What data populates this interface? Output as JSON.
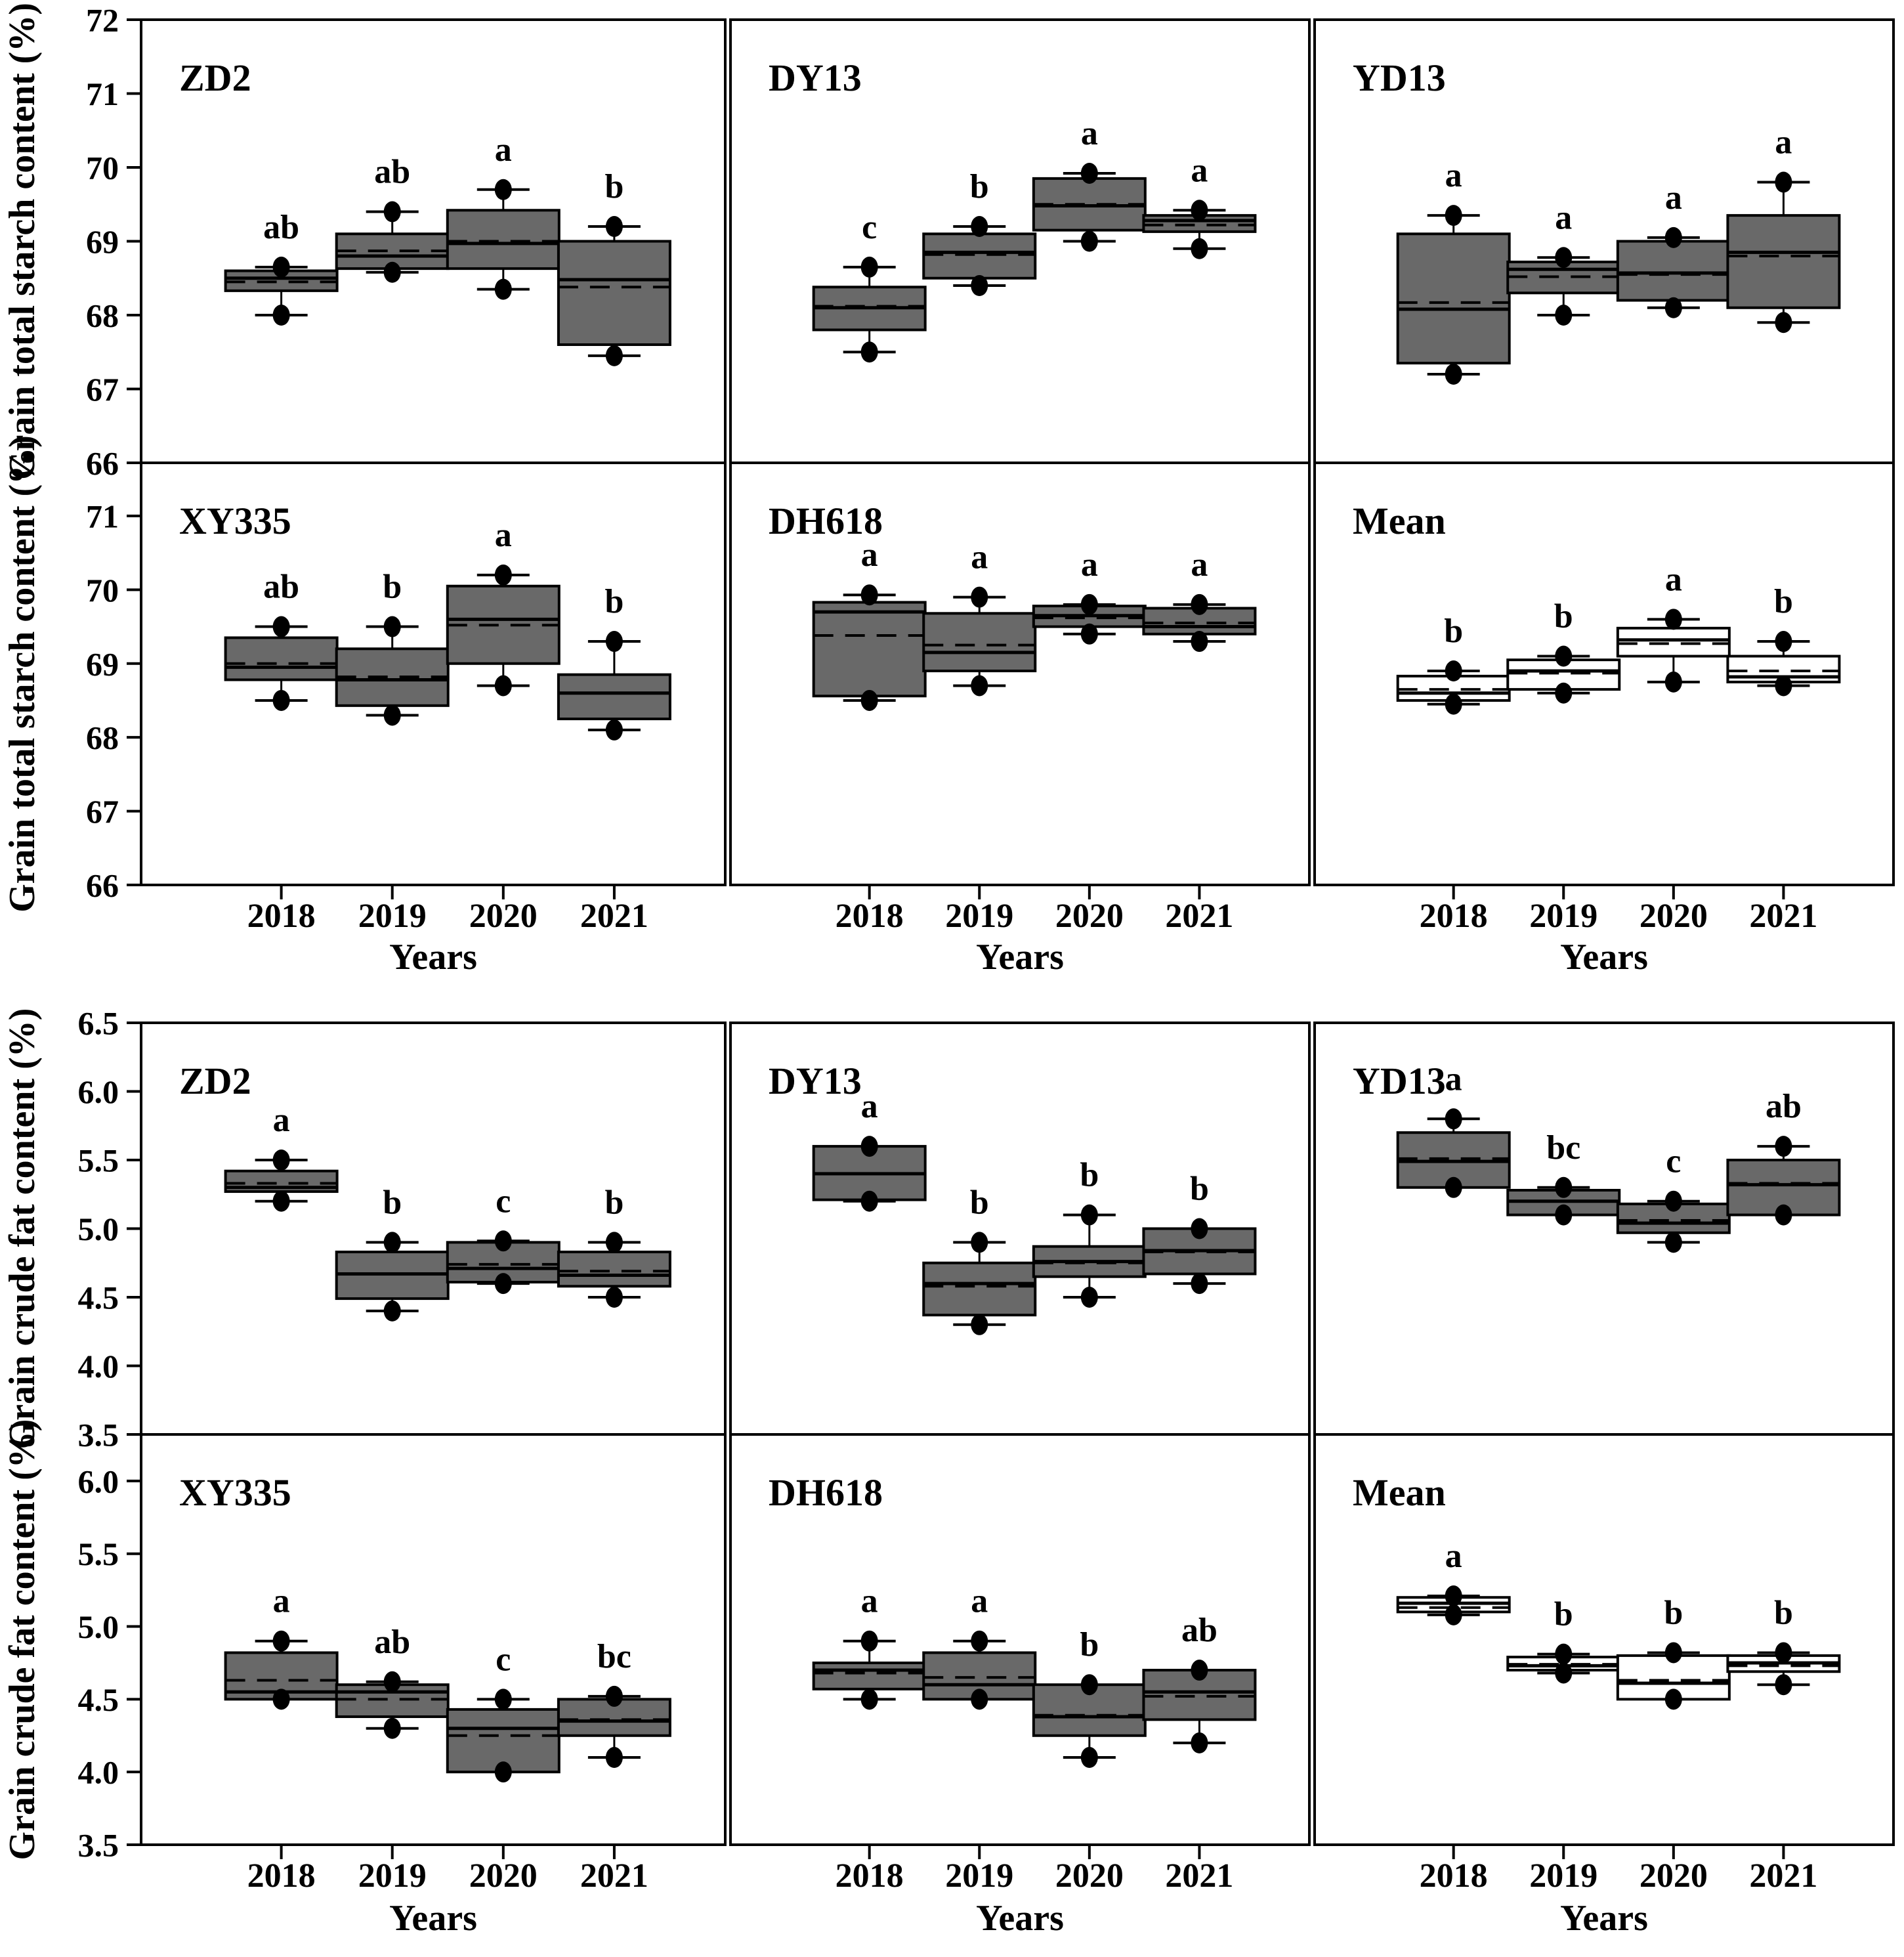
{
  "xlabel": "Years",
  "years": [
    "2018",
    "2019",
    "2020",
    "2021"
  ],
  "colors": {
    "box_fill_gray": "#696969",
    "box_fill_white": "#ffffff",
    "line": "#000000",
    "background": "#ffffff"
  },
  "chart_data": [
    {
      "type": "box",
      "id": "starch",
      "ylabel": "Grain total starch content (%)",
      "xlabel": "Years",
      "legend": "none",
      "grid": false,
      "rows": [
        {
          "ylim": [
            66,
            72
          ],
          "yticks": [
            "72",
            "71",
            "70",
            "69",
            "68",
            "67",
            "66"
          ],
          "panels": [
            {
              "title": "ZD2",
              "white": false,
              "boxes": [
                {
                  "year": "2018",
                  "letter": "ab",
                  "low": 68.0,
                  "q1": 68.33,
                  "median": 68.5,
                  "mean": 68.45,
                  "q3": 68.6,
                  "high": 68.65
                },
                {
                  "year": "2019",
                  "letter": "ab",
                  "low": 68.58,
                  "q1": 68.63,
                  "median": 68.8,
                  "mean": 68.87,
                  "q3": 69.1,
                  "high": 69.4
                },
                {
                  "year": "2020",
                  "letter": "a",
                  "low": 68.35,
                  "q1": 68.63,
                  "median": 68.97,
                  "mean": 69.0,
                  "q3": 69.42,
                  "high": 69.7
                },
                {
                  "year": "2021",
                  "letter": "b",
                  "low": 67.45,
                  "q1": 67.6,
                  "median": 68.48,
                  "mean": 68.38,
                  "q3": 69.0,
                  "high": 69.2
                }
              ]
            },
            {
              "title": "DY13",
              "white": false,
              "boxes": [
                {
                  "year": "2018",
                  "letter": "c",
                  "low": 67.5,
                  "q1": 67.8,
                  "median": 68.1,
                  "mean": 68.12,
                  "q3": 68.38,
                  "high": 68.65
                },
                {
                  "year": "2019",
                  "letter": "b",
                  "low": 68.4,
                  "q1": 68.5,
                  "median": 68.85,
                  "mean": 68.82,
                  "q3": 69.1,
                  "high": 69.2
                },
                {
                  "year": "2020",
                  "letter": "a",
                  "low": 69.0,
                  "q1": 69.15,
                  "median": 69.48,
                  "mean": 69.5,
                  "q3": 69.85,
                  "high": 69.92
                },
                {
                  "year": "2021",
                  "letter": "a",
                  "low": 68.9,
                  "q1": 69.13,
                  "median": 69.28,
                  "mean": 69.22,
                  "q3": 69.35,
                  "high": 69.42
                }
              ]
            },
            {
              "title": "YD13",
              "white": false,
              "boxes": [
                {
                  "year": "2018",
                  "letter": "a",
                  "low": 67.2,
                  "q1": 67.35,
                  "median": 68.08,
                  "mean": 68.17,
                  "q3": 69.1,
                  "high": 69.35
                },
                {
                  "year": "2019",
                  "letter": "a",
                  "low": 68.0,
                  "q1": 68.3,
                  "median": 68.62,
                  "mean": 68.52,
                  "q3": 68.72,
                  "high": 68.78
                },
                {
                  "year": "2020",
                  "letter": "a",
                  "low": 68.1,
                  "q1": 68.2,
                  "median": 68.57,
                  "mean": 68.55,
                  "q3": 69.0,
                  "high": 69.05
                },
                {
                  "year": "2021",
                  "letter": "a",
                  "low": 67.9,
                  "q1": 68.1,
                  "median": 68.85,
                  "mean": 68.8,
                  "q3": 69.35,
                  "high": 69.8
                }
              ]
            }
          ]
        },
        {
          "ylim": [
            66,
            71.72
          ],
          "yticks": [
            "71",
            "70",
            "69",
            "68",
            "67",
            "66"
          ],
          "panels": [
            {
              "title": "XY335",
              "white": false,
              "boxes": [
                {
                  "year": "2018",
                  "letter": "ab",
                  "low": 68.5,
                  "q1": 68.78,
                  "median": 68.95,
                  "mean": 69.0,
                  "q3": 69.35,
                  "high": 69.5
                },
                {
                  "year": "2019",
                  "letter": "b",
                  "low": 68.3,
                  "q1": 68.43,
                  "median": 68.78,
                  "mean": 68.82,
                  "q3": 69.2,
                  "high": 69.5
                },
                {
                  "year": "2020",
                  "letter": "a",
                  "low": 68.7,
                  "q1": 69.0,
                  "median": 69.6,
                  "mean": 69.52,
                  "q3": 70.05,
                  "high": 70.2
                },
                {
                  "year": "2021",
                  "letter": "b",
                  "low": 68.1,
                  "q1": 68.25,
                  "median": 68.6,
                  "mean": 68.6,
                  "q3": 68.85,
                  "high": 69.3
                }
              ]
            },
            {
              "title": "DH618",
              "white": false,
              "boxes": [
                {
                  "year": "2018",
                  "letter": "a",
                  "low": 68.5,
                  "q1": 68.56,
                  "median": 69.7,
                  "mean": 69.38,
                  "q3": 69.83,
                  "high": 69.93
                },
                {
                  "year": "2019",
                  "letter": "a",
                  "low": 68.7,
                  "q1": 68.9,
                  "median": 69.15,
                  "mean": 69.25,
                  "q3": 69.68,
                  "high": 69.9
                },
                {
                  "year": "2020",
                  "letter": "a",
                  "low": 69.4,
                  "q1": 69.5,
                  "median": 69.65,
                  "mean": 69.62,
                  "q3": 69.78,
                  "high": 69.8
                },
                {
                  "year": "2021",
                  "letter": "a",
                  "low": 69.3,
                  "q1": 69.4,
                  "median": 69.5,
                  "mean": 69.55,
                  "q3": 69.75,
                  "high": 69.8
                }
              ]
            },
            {
              "title": "Mean",
              "white": true,
              "boxes": [
                {
                  "year": "2018",
                  "letter": "b",
                  "low": 68.45,
                  "q1": 68.5,
                  "median": 68.6,
                  "mean": 68.65,
                  "q3": 68.83,
                  "high": 68.9
                },
                {
                  "year": "2019",
                  "letter": "b",
                  "low": 68.6,
                  "q1": 68.65,
                  "median": 68.9,
                  "mean": 68.87,
                  "q3": 69.05,
                  "high": 69.1
                },
                {
                  "year": "2020",
                  "letter": "a",
                  "low": 68.75,
                  "q1": 69.1,
                  "median": 69.32,
                  "mean": 69.27,
                  "q3": 69.48,
                  "high": 69.6
                },
                {
                  "year": "2021",
                  "letter": "b",
                  "low": 68.7,
                  "q1": 68.75,
                  "median": 68.82,
                  "mean": 68.9,
                  "q3": 69.1,
                  "high": 69.3
                }
              ]
            }
          ]
        }
      ]
    },
    {
      "type": "box",
      "id": "fat",
      "ylabel": "Grain crude fat content (%)",
      "xlabel": "Years",
      "legend": "none",
      "grid": false,
      "rows": [
        {
          "ylim": [
            3.5,
            6.5
          ],
          "yticks": [
            "6.5",
            "6.0",
            "5.5",
            "5.0",
            "4.5",
            "4.0",
            "3.5"
          ],
          "panels": [
            {
              "title": "ZD2",
              "white": false,
              "boxes": [
                {
                  "year": "2018",
                  "letter": "a",
                  "low": 5.2,
                  "q1": 5.27,
                  "median": 5.3,
                  "mean": 5.33,
                  "q3": 5.42,
                  "high": 5.5
                },
                {
                  "year": "2019",
                  "letter": "b",
                  "low": 4.4,
                  "q1": 4.49,
                  "median": 4.67,
                  "mean": 4.67,
                  "q3": 4.83,
                  "high": 4.9
                },
                {
                  "year": "2020",
                  "letter": "c",
                  "low": 4.6,
                  "q1": 4.61,
                  "median": 4.71,
                  "mean": 4.74,
                  "q3": 4.9,
                  "high": 4.91
                },
                {
                  "year": "2021",
                  "letter": "b",
                  "low": 4.5,
                  "q1": 4.58,
                  "median": 4.66,
                  "mean": 4.69,
                  "q3": 4.83,
                  "high": 4.9
                }
              ]
            },
            {
              "title": "DY13",
              "white": false,
              "boxes": [
                {
                  "year": "2018",
                  "letter": "a",
                  "low": 5.2,
                  "q1": 5.21,
                  "median": 5.4,
                  "mean": 5.4,
                  "q3": 5.6,
                  "high": 5.6
                },
                {
                  "year": "2019",
                  "letter": "b",
                  "low": 4.3,
                  "q1": 4.37,
                  "median": 4.6,
                  "mean": 4.58,
                  "q3": 4.75,
                  "high": 4.9
                },
                {
                  "year": "2020",
                  "letter": "b",
                  "low": 4.5,
                  "q1": 4.65,
                  "median": 4.76,
                  "mean": 4.75,
                  "q3": 4.87,
                  "high": 5.1
                },
                {
                  "year": "2021",
                  "letter": "b",
                  "low": 4.6,
                  "q1": 4.67,
                  "median": 4.84,
                  "mean": 4.83,
                  "q3": 5.0,
                  "high": 5.0
                }
              ]
            },
            {
              "title": "YD13",
              "white": false,
              "boxes": [
                {
                  "year": "2018",
                  "letter": "a",
                  "low": 5.3,
                  "q1": 5.3,
                  "median": 5.49,
                  "mean": 5.51,
                  "q3": 5.7,
                  "high": 5.8
                },
                {
                  "year": "2019",
                  "letter": "bc",
                  "low": 5.1,
                  "q1": 5.1,
                  "median": 5.2,
                  "mean": 5.2,
                  "q3": 5.28,
                  "high": 5.3
                },
                {
                  "year": "2020",
                  "letter": "c",
                  "low": 4.9,
                  "q1": 4.97,
                  "median": 5.04,
                  "mean": 5.06,
                  "q3": 5.18,
                  "high": 5.2
                },
                {
                  "year": "2021",
                  "letter": "ab",
                  "low": 5.1,
                  "q1": 5.1,
                  "median": 5.32,
                  "mean": 5.33,
                  "q3": 5.5,
                  "high": 5.6
                }
              ]
            }
          ]
        },
        {
          "ylim": [
            3.5,
            6.32
          ],
          "yticks": [
            "6.0",
            "5.5",
            "5.0",
            "4.5",
            "4.0",
            "3.5"
          ],
          "panels": [
            {
              "title": "XY335",
              "white": false,
              "boxes": [
                {
                  "year": "2018",
                  "letter": "a",
                  "low": 4.5,
                  "q1": 4.5,
                  "median": 4.55,
                  "mean": 4.63,
                  "q3": 4.82,
                  "high": 4.9
                },
                {
                  "year": "2019",
                  "letter": "ab",
                  "low": 4.3,
                  "q1": 4.38,
                  "median": 4.55,
                  "mean": 4.5,
                  "q3": 4.6,
                  "high": 4.62
                },
                {
                  "year": "2020",
                  "letter": "c",
                  "low": 4.0,
                  "q1": 4.0,
                  "median": 4.3,
                  "mean": 4.25,
                  "q3": 4.43,
                  "high": 4.5
                },
                {
                  "year": "2021",
                  "letter": "bc",
                  "low": 4.1,
                  "q1": 4.25,
                  "median": 4.35,
                  "mean": 4.36,
                  "q3": 4.5,
                  "high": 4.52
                }
              ]
            },
            {
              "title": "DH618",
              "white": false,
              "boxes": [
                {
                  "year": "2018",
                  "letter": "a",
                  "low": 4.5,
                  "q1": 4.57,
                  "median": 4.7,
                  "mean": 4.68,
                  "q3": 4.75,
                  "high": 4.9
                },
                {
                  "year": "2019",
                  "letter": "a",
                  "low": 4.5,
                  "q1": 4.5,
                  "median": 4.6,
                  "mean": 4.65,
                  "q3": 4.82,
                  "high": 4.9
                },
                {
                  "year": "2020",
                  "letter": "b",
                  "low": 4.1,
                  "q1": 4.25,
                  "median": 4.38,
                  "mean": 4.39,
                  "q3": 4.6,
                  "high": 4.6
                },
                {
                  "year": "2021",
                  "letter": "ab",
                  "low": 4.2,
                  "q1": 4.36,
                  "median": 4.55,
                  "mean": 4.52,
                  "q3": 4.7,
                  "high": 4.7
                }
              ]
            },
            {
              "title": "Mean",
              "white": true,
              "boxes": [
                {
                  "year": "2018",
                  "letter": "a",
                  "low": 5.08,
                  "q1": 5.1,
                  "median": 5.16,
                  "mean": 5.13,
                  "q3": 5.2,
                  "high": 5.21
                },
                {
                  "year": "2019",
                  "letter": "b",
                  "low": 4.68,
                  "q1": 4.7,
                  "median": 4.73,
                  "mean": 4.74,
                  "q3": 4.79,
                  "high": 4.81
                },
                {
                  "year": "2020",
                  "letter": "b",
                  "low": 4.5,
                  "q1": 4.5,
                  "median": 4.61,
                  "mean": 4.63,
                  "q3": 4.8,
                  "high": 4.82
                },
                {
                  "year": "2021",
                  "letter": "b",
                  "low": 4.6,
                  "q1": 4.69,
                  "median": 4.75,
                  "mean": 4.73,
                  "q3": 4.8,
                  "high": 4.82
                }
              ]
            }
          ]
        }
      ]
    }
  ]
}
